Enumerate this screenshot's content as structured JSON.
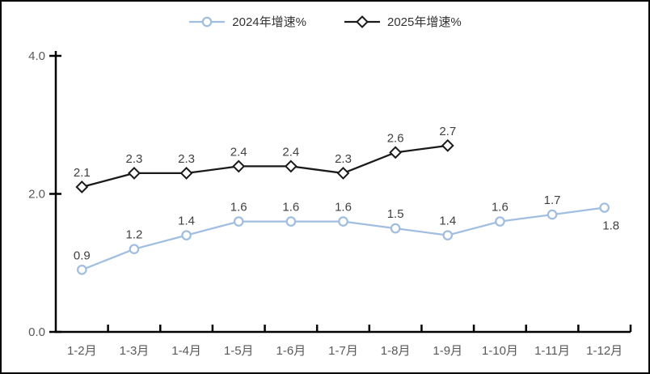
{
  "chart_data": {
    "type": "line",
    "categories": [
      "1-2月",
      "1-3月",
      "1-4月",
      "1-5月",
      "1-6月",
      "1-7月",
      "1-8月",
      "1-9月",
      "1-10月",
      "1-11月",
      "1-12月"
    ],
    "series": [
      {
        "name": "2024年增速%",
        "marker": "circle",
        "color": "#a1bee1",
        "values": [
          0.9,
          1.2,
          1.4,
          1.6,
          1.6,
          1.6,
          1.5,
          1.4,
          1.6,
          1.7,
          1.8
        ],
        "label_below_indices": [
          10
        ]
      },
      {
        "name": "2025年增速%",
        "marker": "diamond",
        "color": "#1a1a1a",
        "values": [
          2.1,
          2.3,
          2.3,
          2.4,
          2.4,
          2.3,
          2.6,
          2.7
        ],
        "label_below_indices": []
      }
    ],
    "title": "",
    "xlabel": "",
    "ylabel": "",
    "ylim": [
      0,
      4
    ],
    "ytick_interval": 2,
    "ytick_labels": [
      "0.0",
      "2.0",
      "4.0"
    ],
    "grid": false,
    "legend_position": "top",
    "data_labels_shown": true,
    "colors": {
      "axis": "#000000",
      "tick_text": "#595959",
      "data_label_text": "#404040",
      "legend_text": "#333333",
      "background": "#ffffff"
    }
  }
}
